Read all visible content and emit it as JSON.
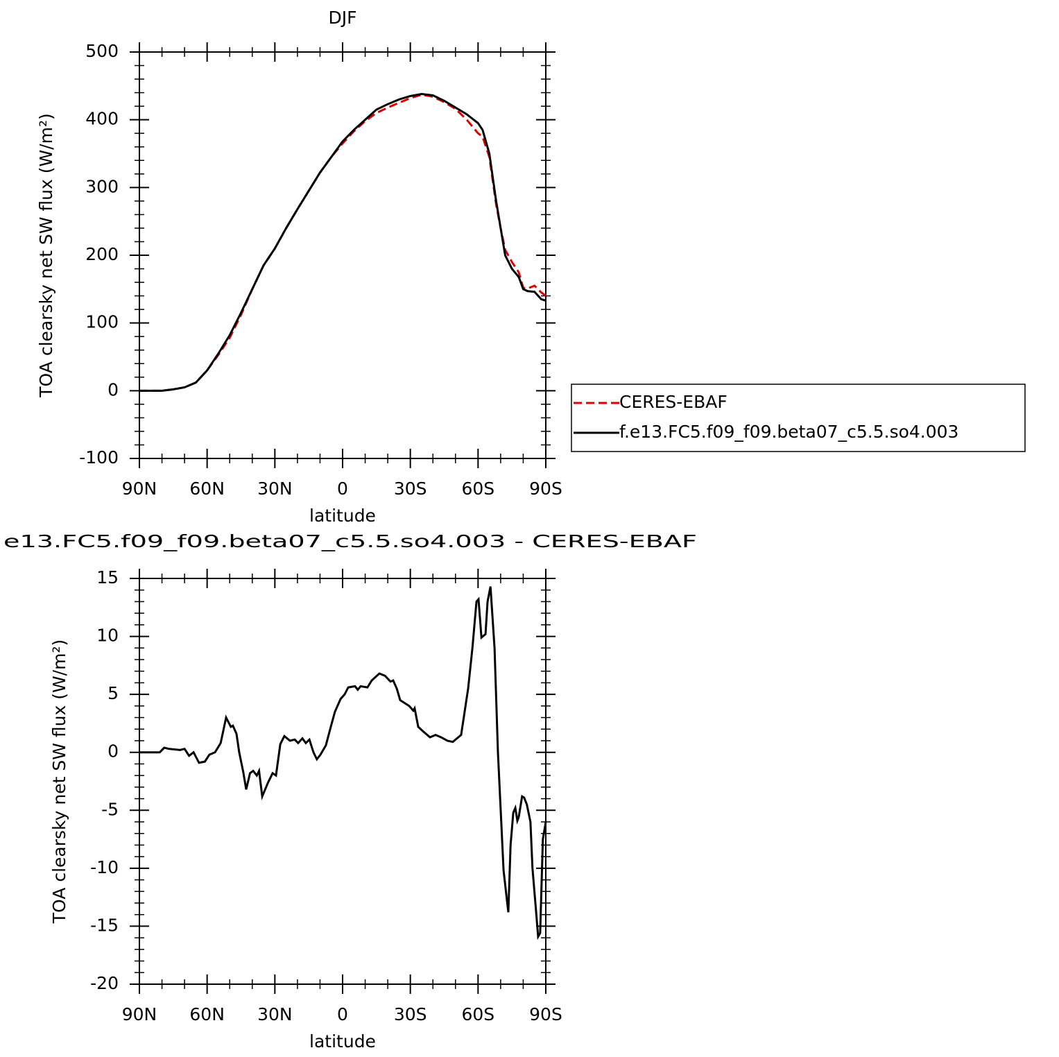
{
  "chart_data": [
    {
      "type": "line",
      "title": "DJF",
      "xlabel": "latitude",
      "ylabel": "TOA clearsky net SW flux (W/m²)",
      "x": [
        90,
        85,
        80,
        75,
        70,
        65,
        60,
        55,
        50,
        45,
        40,
        35,
        30,
        25,
        20,
        15,
        10,
        5,
        0,
        -5,
        -10,
        -15,
        -20,
        -25,
        -30,
        -35,
        -40,
        -45,
        -50,
        -55,
        -60,
        -62,
        -65,
        -68,
        -70,
        -72,
        -75,
        -78,
        -80,
        -82,
        -85,
        -88,
        -90
      ],
      "series": [
        {
          "name": "CERES-EBAF",
          "color": "#e00000",
          "linestyle": "dashed",
          "values": [
            0,
            0,
            0,
            2,
            5,
            12,
            30,
            53,
            78,
            112,
            150,
            185,
            210,
            240,
            268,
            295,
            322,
            345,
            365,
            383,
            398,
            410,
            418,
            425,
            432,
            437,
            434,
            426,
            416,
            400,
            380,
            375,
            345,
            275,
            240,
            208,
            190,
            175,
            152,
            151,
            155,
            145,
            140
          ]
        },
        {
          "name": "f.e13.FC5.f09_f09.beta07_c5.5.so4.003",
          "color": "#000000",
          "linestyle": "solid",
          "values": [
            0,
            0,
            0,
            2,
            5,
            12,
            30,
            55,
            82,
            115,
            150,
            185,
            210,
            240,
            268,
            295,
            322,
            345,
            368,
            385,
            400,
            415,
            423,
            430,
            435,
            438,
            436,
            428,
            418,
            408,
            395,
            385,
            350,
            280,
            240,
            200,
            180,
            168,
            150,
            147,
            146,
            135,
            133
          ]
        }
      ],
      "xlim": [
        90,
        -90
      ],
      "xticks": [
        {
          "value": 90,
          "label": "90N"
        },
        {
          "value": 60,
          "label": "60N"
        },
        {
          "value": 30,
          "label": "30N"
        },
        0,
        {
          "value": -30,
          "label": "30S"
        },
        {
          "value": -60,
          "label": "60S"
        },
        {
          "value": -90,
          "label": "90S"
        }
      ],
      "ylim": [
        -100,
        500
      ],
      "yticks": [
        -100,
        0,
        100,
        200,
        300,
        400,
        500
      ],
      "legend": "right"
    },
    {
      "type": "line",
      "title": "e13.FC5.f09_f09.beta07_c5.5.so4.003 - CERES-EBAF",
      "xlabel": "latitude",
      "ylabel": "TOA clearsky net SW flux (W/m²)",
      "x": [
        90,
        81,
        79,
        77,
        72,
        70,
        68,
        66,
        63.6,
        61,
        59,
        56.5,
        54,
        51.6,
        49.5,
        48.6,
        47,
        45.8,
        44,
        42.7,
        41,
        39.6,
        38,
        37,
        35.6,
        33,
        31,
        29.5,
        27.6,
        25.8,
        23.3,
        21.2,
        19.7,
        17.8,
        16.3,
        14.7,
        12.9,
        11.4,
        9.8,
        7.4,
        5.5,
        3.4,
        0.9,
        -0.9,
        -2.5,
        -5.5,
        -6.7,
        -8,
        -11,
        -12.9,
        -16.3,
        -18.8,
        -21.2,
        -22.4,
        -24,
        -25.5,
        -29.5,
        -31.3,
        -31.9,
        -33.5,
        -35.7,
        -38.7,
        -41.2,
        -43.6,
        -46.4,
        -48.8,
        -52.5,
        -55.6,
        -57.5,
        -59.3,
        -60.2,
        -61.5,
        -63.3,
        -64.2,
        -65.5,
        -67.3,
        -68.8,
        -71.3,
        -73.4,
        -74.4,
        -75.6,
        -76.5,
        -77.4,
        -78,
        -79.5,
        -80.4,
        -81.6,
        -83.2,
        -84.1,
        -85.6,
        -86.6,
        -87.5,
        -88.7,
        -90
      ],
      "series": [
        {
          "color": "#000000",
          "linestyle": "solid",
          "values": [
            0,
            0,
            0.4,
            0.3,
            0.2,
            0.3,
            -0.3,
            0,
            -0.9,
            -0.8,
            -0.2,
            0,
            0.8,
            3.0,
            2.2,
            2.3,
            1.6,
            0,
            -1.7,
            -3.2,
            -1.8,
            -1.6,
            -2.0,
            -1.6,
            -3.8,
            -2.6,
            -1.8,
            -2.0,
            0.7,
            1.4,
            1.0,
            1.1,
            0.8,
            1.2,
            0.8,
            1.1,
            0,
            -0.6,
            -0.2,
            0.6,
            2.0,
            3.5,
            4.6,
            5.0,
            5.6,
            5.7,
            5.4,
            5.7,
            5.6,
            6.2,
            6.8,
            6.6,
            6.1,
            6.2,
            5.5,
            4.5,
            4.0,
            3.6,
            3.8,
            2.2,
            1.8,
            1.3,
            1.5,
            1.3,
            1.0,
            0.9,
            1.5,
            5.5,
            9,
            13,
            13.2,
            9.9,
            10.2,
            13.0,
            14.3,
            9,
            0,
            -10.2,
            -13.8,
            -8,
            -5.2,
            -4.8,
            -5.9,
            -5.6,
            -3.8,
            -3.9,
            -4.5,
            -6,
            -10,
            -13.5,
            -15.9,
            -15.6,
            -7.5,
            -6
          ]
        }
      ],
      "xlim": [
        90,
        -90
      ],
      "xticks": [
        {
          "value": 90,
          "label": "90N"
        },
        {
          "value": 60,
          "label": "60N"
        },
        {
          "value": 30,
          "label": "30N"
        },
        0,
        {
          "value": -30,
          "label": "30S"
        },
        {
          "value": -60,
          "label": "60S"
        },
        {
          "value": -90,
          "label": "90S"
        }
      ],
      "ylim": [
        -20,
        15
      ],
      "yticks": [
        -20,
        -15,
        -10,
        -5,
        0,
        5,
        10,
        15
      ]
    }
  ]
}
